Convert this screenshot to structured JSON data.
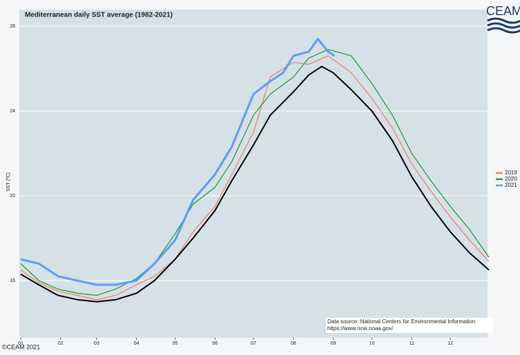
{
  "chart_data": {
    "type": "line",
    "title": "Mediterranean daily SST average (1982-2021)",
    "y_label": "SST (ºC)",
    "logo": "CEAM",
    "copyright": "©CEAM 2021",
    "source": [
      "Data source: National Centers for Environmental Information",
      "https://www.ncei.noaa.gov/"
    ],
    "xlim": [
      1,
      365
    ],
    "ylim": [
      13.3,
      28
    ],
    "xticks": [
      {
        "value": 1,
        "label": "01"
      },
      {
        "value": 32,
        "label": "02"
      },
      {
        "value": 60,
        "label": "03"
      },
      {
        "value": 91,
        "label": "04"
      },
      {
        "value": 121,
        "label": "05"
      },
      {
        "value": 152,
        "label": "06"
      },
      {
        "value": 182,
        "label": "07"
      },
      {
        "value": 213,
        "label": "08"
      },
      {
        "value": 244,
        "label": "09"
      },
      {
        "value": 274,
        "label": "10"
      },
      {
        "value": 305,
        "label": "11"
      },
      {
        "value": 335,
        "label": "12"
      }
    ],
    "yticks": [
      16,
      20,
      24,
      28
    ],
    "grid": true,
    "series": [
      {
        "name": "2019",
        "color": "#f08070",
        "width": 1.3,
        "x": [
          1,
          15,
          30,
          45,
          60,
          75,
          91,
          105,
          121,
          135,
          152,
          165,
          182,
          195,
          213,
          225,
          240,
          258,
          274,
          290,
          305,
          320,
          335,
          350,
          365
        ],
        "values": [
          16.5,
          15.9,
          15.5,
          15.3,
          15.1,
          15.3,
          15.8,
          16.2,
          17.0,
          18.3,
          19.5,
          21.0,
          23.0,
          25.6,
          26.3,
          26.2,
          26.6,
          25.8,
          24.6,
          23.2,
          21.5,
          20.2,
          19.0,
          17.9,
          16.9
        ]
      },
      {
        "name": "2020",
        "color": "#1ea032",
        "width": 1.3,
        "x": [
          1,
          15,
          30,
          45,
          60,
          75,
          91,
          105,
          121,
          135,
          152,
          165,
          182,
          195,
          213,
          225,
          240,
          258,
          274,
          290,
          305,
          320,
          335,
          350,
          365
        ],
        "values": [
          16.8,
          16.0,
          15.6,
          15.4,
          15.3,
          15.6,
          16.1,
          16.8,
          18.2,
          19.6,
          20.4,
          21.6,
          23.8,
          24.8,
          25.6,
          26.5,
          26.9,
          26.6,
          25.3,
          23.8,
          22.0,
          20.7,
          19.5,
          18.4,
          17.1
        ]
      },
      {
        "color": "#000000",
        "width": 2,
        "x": [
          1,
          15,
          30,
          45,
          60,
          75,
          91,
          105,
          121,
          135,
          152,
          165,
          182,
          195,
          213,
          225,
          235,
          244,
          258,
          274,
          290,
          305,
          320,
          335,
          350,
          365
        ],
        "values": [
          16.3,
          15.8,
          15.3,
          15.1,
          15.0,
          15.1,
          15.4,
          16.0,
          17.0,
          18.0,
          19.3,
          20.7,
          22.4,
          23.8,
          24.9,
          25.7,
          26.1,
          25.8,
          25.0,
          24.0,
          22.6,
          20.9,
          19.5,
          18.3,
          17.3,
          16.5
        ]
      },
      {
        "name": "2021",
        "color": "#5b9cf5",
        "width": 3,
        "x": [
          1,
          15,
          30,
          45,
          60,
          75,
          91,
          105,
          121,
          135,
          152,
          165,
          182,
          195,
          205,
          213,
          225,
          232,
          240,
          245
        ],
        "values": [
          17.0,
          16.8,
          16.2,
          16.0,
          15.8,
          15.8,
          16.0,
          16.8,
          17.9,
          19.8,
          21.0,
          22.3,
          24.8,
          25.4,
          25.8,
          26.6,
          26.8,
          27.4,
          26.8,
          26.6
        ]
      }
    ]
  }
}
